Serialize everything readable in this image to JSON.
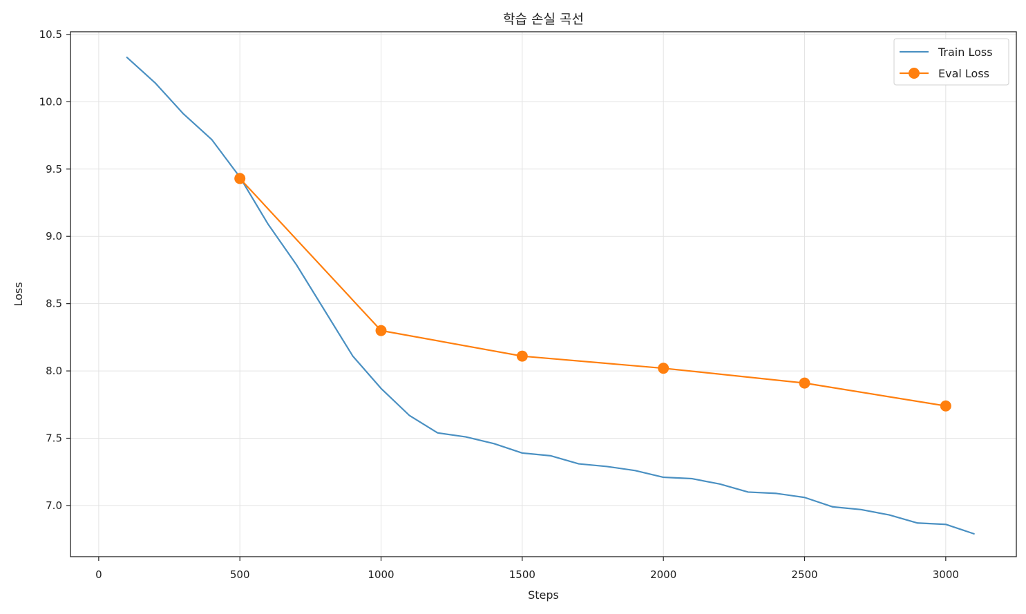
{
  "chart_data": {
    "type": "line",
    "title": "학습 손실 곡선",
    "xlabel": "Steps",
    "ylabel": "Loss",
    "xlim": [
      -100,
      3250
    ],
    "ylim": [
      6.62,
      10.52
    ],
    "xticks": [
      0,
      500,
      1000,
      1500,
      2000,
      2500,
      3000
    ],
    "yticks": [
      7.0,
      7.5,
      8.0,
      8.5,
      9.0,
      9.5,
      10.0,
      10.5
    ],
    "xtick_labels": [
      "0",
      "500",
      "1000",
      "1500",
      "2000",
      "2500",
      "3000"
    ],
    "ytick_labels": [
      "7.0",
      "7.5",
      "8.0",
      "8.5",
      "9.0",
      "9.5",
      "10.0",
      "10.5"
    ],
    "grid": true,
    "legend_position": "top-right",
    "series": [
      {
        "name": "Train Loss",
        "color": "#4a90c2",
        "marker": "none",
        "x": [
          100,
          200,
          300,
          400,
          500,
          600,
          700,
          800,
          900,
          1000,
          1100,
          1200,
          1300,
          1400,
          1500,
          1600,
          1700,
          1800,
          1900,
          2000,
          2100,
          2200,
          2300,
          2400,
          2500,
          2600,
          2700,
          2800,
          2900,
          3000,
          3100
        ],
        "y": [
          10.33,
          10.14,
          9.91,
          9.72,
          9.44,
          9.09,
          8.79,
          8.45,
          8.11,
          7.87,
          7.67,
          7.54,
          7.51,
          7.46,
          7.39,
          7.37,
          7.31,
          7.29,
          7.26,
          7.21,
          7.2,
          7.16,
          7.1,
          7.09,
          7.06,
          6.99,
          6.97,
          6.93,
          6.87,
          6.86,
          6.79
        ]
      },
      {
        "name": "Eval Loss",
        "color": "#ff7f0e",
        "marker": "circle",
        "x": [
          500,
          1000,
          1500,
          2000,
          2500,
          3000
        ],
        "y": [
          9.43,
          8.3,
          8.11,
          8.02,
          7.91,
          7.74
        ]
      }
    ]
  }
}
